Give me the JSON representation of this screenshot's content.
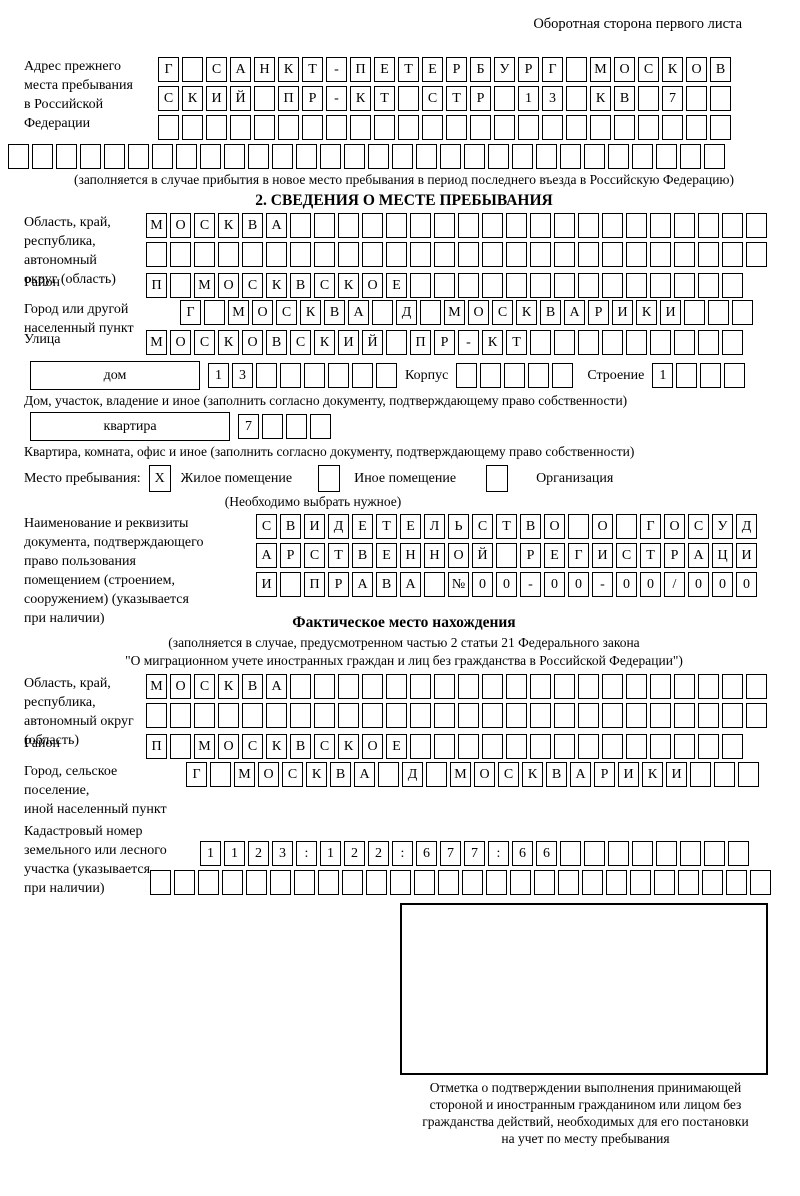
{
  "page": {
    "header_note": "Оборотная сторона первого листа"
  },
  "prev_address": {
    "label": "Адрес прежнего\nместа пребывания\nв Российской\nФедерации",
    "rows": [
      {
        "len": 24,
        "text": "Г САНКТ-ПЕТЕРБУРГ МОСКОВ"
      },
      {
        "len": 24,
        "text": "СКИЙ ПР-КТ СТР 13 КВ 7"
      },
      {
        "len": 24,
        "text": ""
      },
      {
        "len": 30,
        "text": ""
      }
    ],
    "note": "(заполняется в случае прибытия в новое место пребывания в период последнего въезда в Российскую Федерацию)"
  },
  "section2": {
    "title": "2. СВЕДЕНИЯ О МЕСТЕ ПРЕБЫВАНИЯ",
    "oblast": {
      "label": "Область, край,\nреспублика,\nавтономный\nокруг (область)",
      "rows": [
        {
          "len": 26,
          "text": "МОСКВА"
        },
        {
          "len": 26,
          "text": ""
        }
      ]
    },
    "raion": {
      "label": "Район",
      "row": {
        "len": 25,
        "text": "П МОСКВСКОЕ"
      }
    },
    "gorod": {
      "label": "Город или другой\nнаселенный пункт",
      "row": {
        "len": 24,
        "text": "Г МОСКВА Д МОСКВАРИКИ"
      }
    },
    "ulitsa": {
      "label": "Улица",
      "row": {
        "len": 25,
        "text": "МОСКОВСКИЙ ПР-КТ"
      }
    },
    "dom": {
      "box_label": "дом",
      "number": {
        "len": 8,
        "text": "13"
      },
      "korpus_label": "Корпус",
      "korpus": {
        "len": 5,
        "text": ""
      },
      "stroenie_label": "Строение",
      "stroenie": {
        "len": 4,
        "text": "1"
      }
    },
    "dom_note": "Дом, участок, владение и иное (заполнить согласно документу, подтверждающему право собственности)",
    "kvartira": {
      "box_label": "квартира",
      "cells": {
        "len": 4,
        "text": "7"
      }
    },
    "kvartira_note": "Квартира, комната, офис и иное (заполнить согласно документу, подтверждающему право собственности)",
    "mesto": {
      "label": "Место пребывания:",
      "options": [
        {
          "mark": "X",
          "label": "Жилое помещение"
        },
        {
          "mark": "",
          "label": "Иное помещение"
        },
        {
          "mark": "",
          "label": "Организация"
        }
      ],
      "note": "(Необходимо выбрать нужное)"
    },
    "document": {
      "label": "Наименование и реквизиты\nдокумента, подтверждающего\nправо пользования\nпомещением (строением,\nсооружением) (указывается\nпри наличии)",
      "rows": [
        {
          "len": 21,
          "text": "СВИДЕТЕЛЬСТВО О ГОСУД"
        },
        {
          "len": 21,
          "text": "АРСТВЕННОЙ РЕГИСТРАЦИ"
        },
        {
          "len": 21,
          "text": "И ПРАВА №00-00-00/000"
        }
      ]
    }
  },
  "factual": {
    "title": "Фактическое место нахождения",
    "note": "(заполняется в случае, предусмотренном частью 2 статьи 21 Федерального закона\n\"О миграционном учете иностранных граждан и лиц без гражданства в Российской Федерации\")",
    "oblast": {
      "label": "Область, край,\nреспублика,\nавтономный округ\n(область)",
      "rows": [
        {
          "len": 26,
          "text": "МОСКВА"
        },
        {
          "len": 26,
          "text": ""
        }
      ]
    },
    "raion": {
      "label": "Район",
      "row": {
        "len": 25,
        "text": "П МОСКВСКОЕ"
      }
    },
    "gorod": {
      "label": "Город, сельское поселение,\nиной населенный пункт",
      "row": {
        "len": 24,
        "text": "Г МОСКВА Д МОСКВАРИКИ"
      }
    },
    "kadastr": {
      "label": "Кадастровый номер\nземельного или лесного\nучастка (указывается\nпри наличии)",
      "rows": [
        {
          "len": 23,
          "text": "1123:122:677:66"
        },
        {
          "len": 26,
          "text": ""
        }
      ]
    }
  },
  "stamp": {
    "caption": "Отметка о подтверждении выполнения принимающей\nстороной и иностранным гражданином или лицом без\nгражданства действий, необходимых для его постановки\nна учет по месту пребывания"
  }
}
